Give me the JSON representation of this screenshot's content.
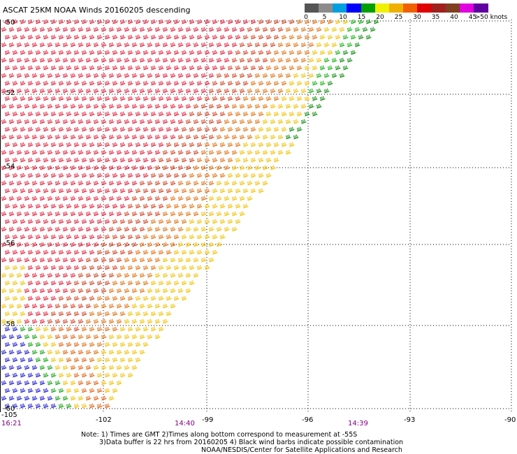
{
  "header": {
    "title": "ASCAT 25KM NOAA Winds 20160205 descending"
  },
  "legend": {
    "unit": "knots",
    "colors": [
      "#555555",
      "#8c8c8c",
      "#00a0e0",
      "#0000ff",
      "#00a000",
      "#f0f000",
      "#f0b000",
      "#f06000",
      "#e00000",
      "#a02020",
      "#804020",
      "#e000e0",
      "#6000a0"
    ],
    "labels": [
      "0",
      "5",
      "10",
      "15",
      "20",
      "25",
      "30",
      "35",
      "40",
      "45",
      ">50 knots"
    ]
  },
  "axes": {
    "lat_labels": [
      "-50",
      "-52",
      "-54",
      "-56",
      "-58",
      "-60"
    ],
    "lon_labels": [
      "-105",
      "-102",
      "-99",
      "-96",
      "-93",
      "-90"
    ],
    "lon_range": [
      -105,
      -90
    ],
    "lat_range": [
      -50,
      -60
    ]
  },
  "times": {
    "left": "16:21",
    "mid1": "14:40",
    "mid2": "14:39"
  },
  "notes": {
    "line1": "Note: 1) Times are GMT 2)Times along bottom correspond to measurement at -55S",
    "line2": "3)Data buffer is 22 hrs from 20160205 4) Black wind barbs indicate possible contamination",
    "line3": "NOAA/NESDIS/Center for Satellite Applications and Research"
  },
  "wind_field": {
    "regions": [
      {
        "speed_class": "35",
        "color": "#e0203a"
      },
      {
        "speed_class": "30",
        "color": "#e06010"
      },
      {
        "speed_class": "25",
        "color": "#f0c000"
      },
      {
        "speed_class": "20",
        "color": "#00a000"
      },
      {
        "speed_class": "15",
        "color": "#0000ff"
      }
    ]
  }
}
